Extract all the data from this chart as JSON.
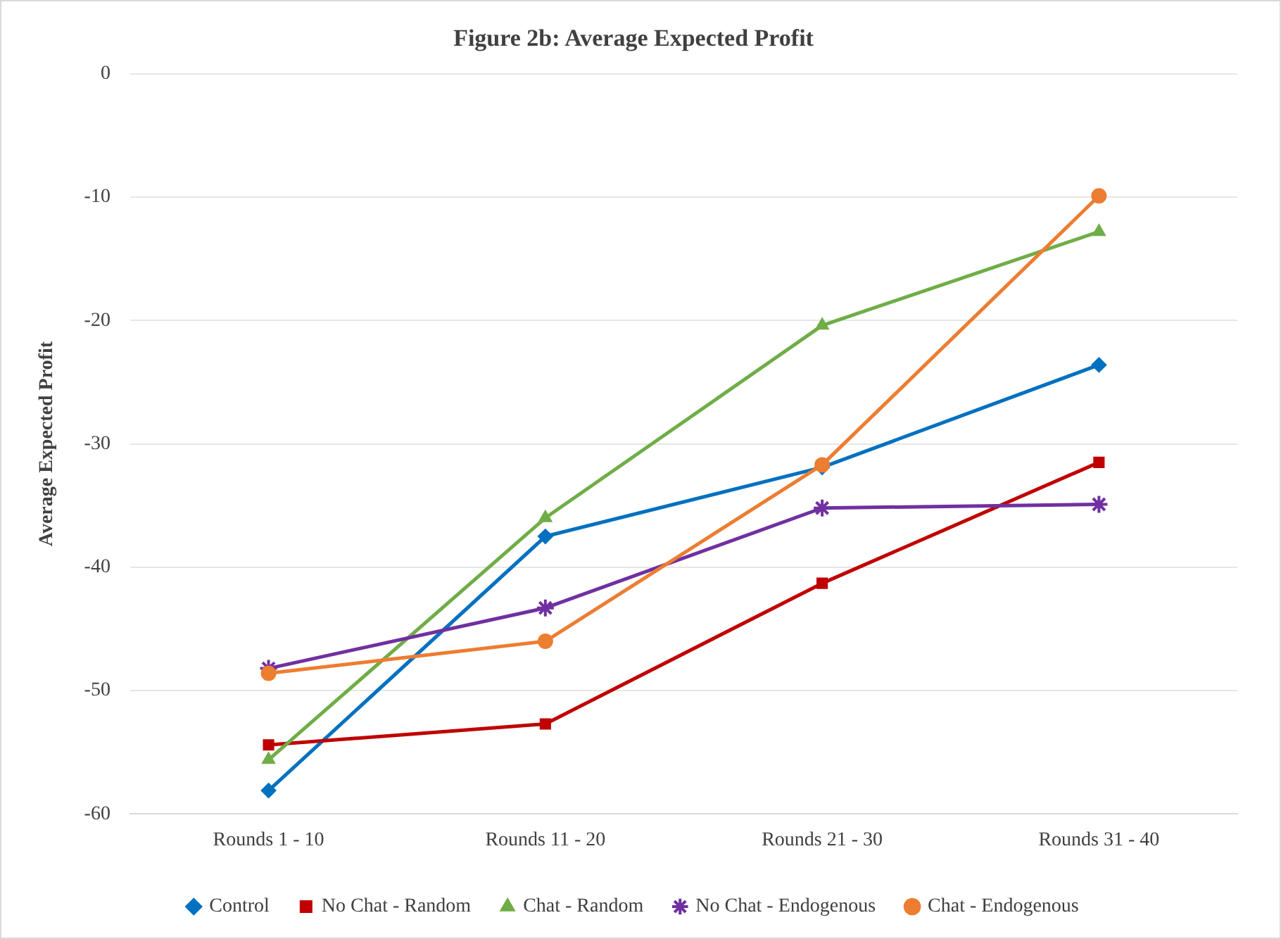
{
  "chart_data": {
    "type": "line",
    "title": "Figure 2b: Average Expected Profit",
    "ylabel": "Average Expected Profit",
    "categories": [
      "Rounds 1 - 10",
      "Rounds 11 - 20",
      "Rounds 21 - 30",
      "Rounds 31 - 40"
    ],
    "series": [
      {
        "name": "Control",
        "color": "#0070c0",
        "marker": "diamond",
        "values": [
          -58.1,
          -37.5,
          -31.9,
          -23.6
        ]
      },
      {
        "name": "No Chat - Random",
        "color": "#c00000",
        "marker": "square",
        "values": [
          -54.4,
          -52.7,
          -41.3,
          -31.5
        ]
      },
      {
        "name": "Chat - Random",
        "color": "#70ad47",
        "marker": "triangle",
        "values": [
          -55.6,
          -36.0,
          -20.4,
          -12.8
        ]
      },
      {
        "name": "No Chat - Endogenous",
        "color": "#7030a0",
        "marker": "cross",
        "values": [
          -48.2,
          -43.3,
          -35.2,
          -34.9
        ]
      },
      {
        "name": "Chat - Endogenous",
        "color": "#ed7d31",
        "marker": "circle",
        "values": [
          -48.6,
          -46.0,
          -31.7,
          -9.9
        ]
      }
    ],
    "ylim": [
      -60,
      0
    ],
    "yticks": [
      -60,
      -50,
      -40,
      -30,
      -20,
      -10,
      0
    ],
    "grid": "y",
    "legend": "bottom",
    "line_style": "solid"
  }
}
